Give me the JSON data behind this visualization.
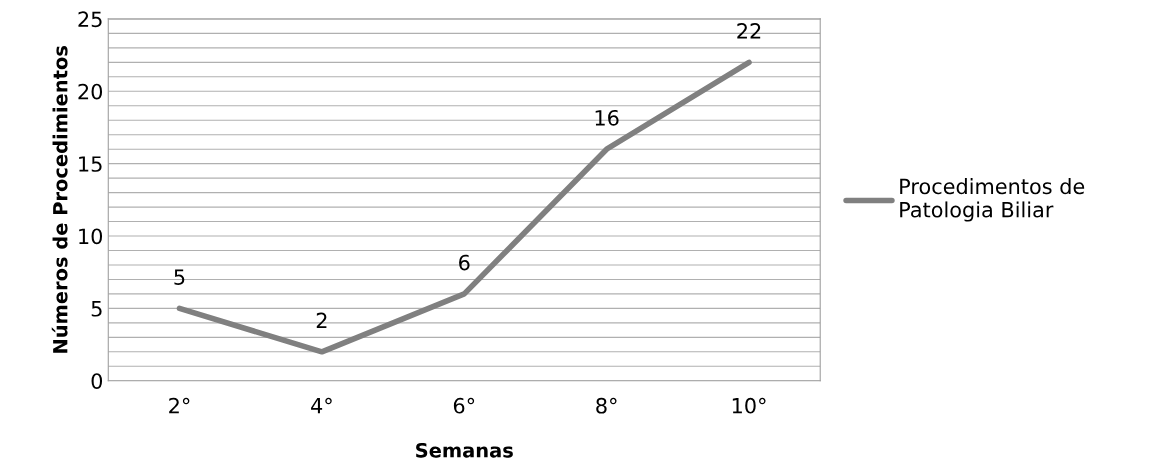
{
  "chart_data": {
    "type": "line",
    "xlabel": "Semanas",
    "ylabel": "Números de Procedimientos",
    "categories": [
      "2°",
      "4°",
      "6°",
      "8°",
      "10°"
    ],
    "series": [
      {
        "name": "Procedimentos de\nPatologia Biliar",
        "color": "#808080",
        "values": [
          5,
          2,
          6,
          16,
          22
        ]
      }
    ],
    "ylim": [
      0,
      25
    ],
    "yticks": [
      0,
      {
        "value": 1,
        "label": null
      },
      {
        "value": 2,
        "label": null
      },
      {
        "value": 3,
        "label": null
      },
      {
        "value": 4,
        "label": null
      },
      5,
      {
        "value": 6,
        "label": null
      },
      {
        "value": 7,
        "label": null
      },
      {
        "value": 8,
        "label": null
      },
      {
        "value": 9,
        "label": null
      },
      10,
      {
        "value": 11,
        "label": null
      },
      {
        "value": 12,
        "label": null
      },
      {
        "value": 13,
        "label": null
      },
      {
        "value": 14,
        "label": null
      },
      15,
      {
        "value": 16,
        "label": null
      },
      {
        "value": 17,
        "label": null
      },
      {
        "value": 18,
        "label": null
      },
      {
        "value": 19,
        "label": null
      },
      20,
      {
        "value": 21,
        "label": null
      },
      {
        "value": 22,
        "label": null
      },
      {
        "value": 23,
        "label": null
      },
      {
        "value": 24,
        "label": null
      },
      25
    ],
    "grid": "y",
    "legend": "right",
    "data_labels": true,
    "marker": "none",
    "line_style": "solid"
  }
}
